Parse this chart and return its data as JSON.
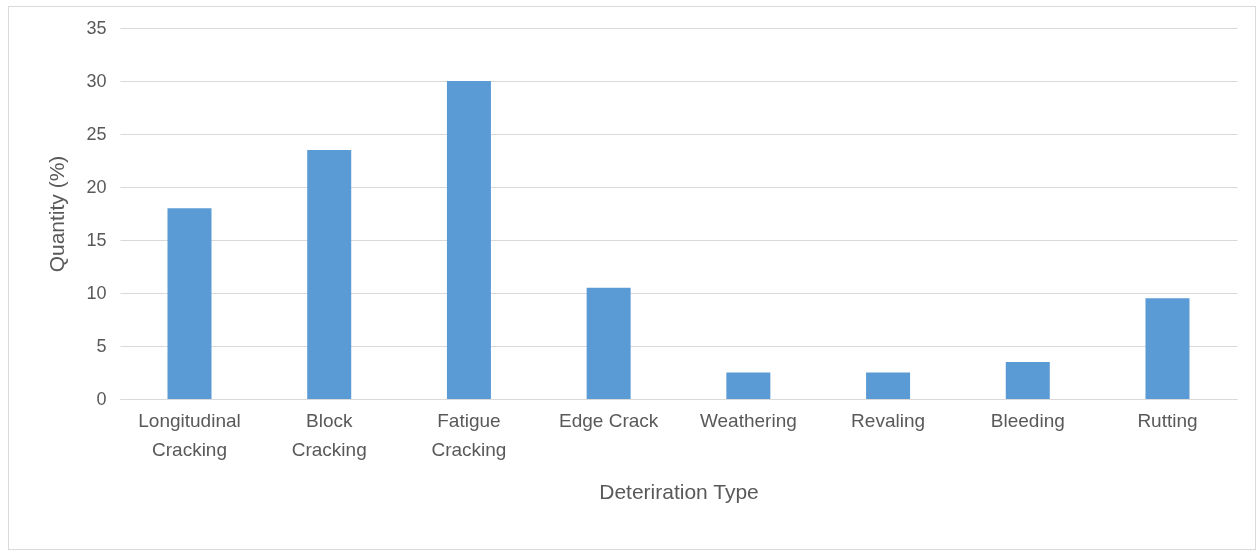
{
  "chart_data": {
    "type": "bar",
    "xlabel": "Deteriration Type",
    "ylabel": "Quantity (%)",
    "categories": [
      "Longitudinal Cracking",
      "Block Cracking",
      "Fatigue Cracking",
      "Edge Crack",
      "Weathering",
      "Revaling",
      "Bleeding",
      "Rutting"
    ],
    "values": [
      18,
      23.5,
      30,
      10.5,
      2.5,
      2.5,
      3.5,
      9.5
    ],
    "color": "#5b9bd5",
    "ylim": [
      0,
      35
    ],
    "yticks": [
      0,
      5,
      10,
      15,
      20,
      25,
      30,
      35
    ],
    "grid": "y",
    "legend": false
  }
}
